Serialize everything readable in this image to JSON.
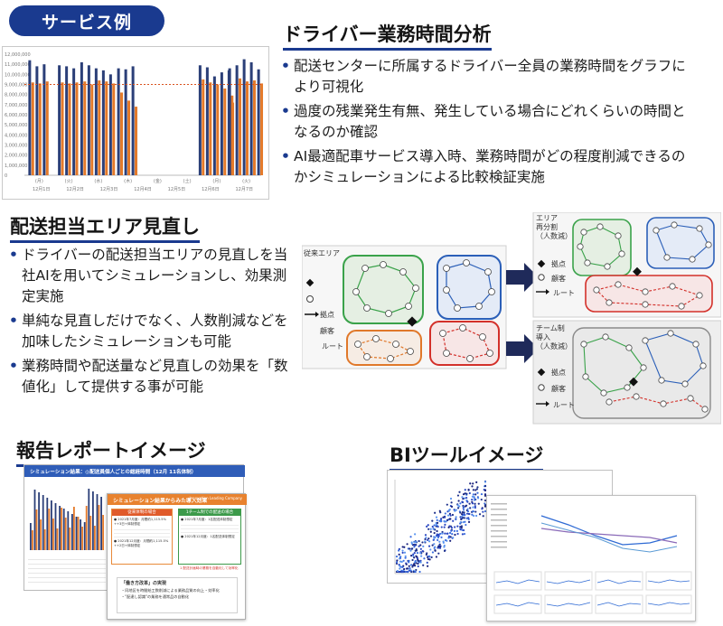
{
  "badge": "サービス例",
  "driver_analysis": {
    "title": "ドライバー業務時間分析",
    "bullets": [
      "配送センターに所属するドライバー全員の業務時間をグラフにより可視化",
      "過度の残業発生有無、発生している場合にどれくらいの時間となるのか確認",
      "AI最適配車サービス導入時、業務時間がどの程度削減できるのかシミュレーションによる比較検証実施"
    ],
    "chart": {
      "day_labels": [
        "(月)",
        "(火)",
        "(水)",
        "(木)",
        "(金)",
        "(土)",
        "(月)",
        "(火)"
      ],
      "date_labels": [
        "12月1日",
        "12月2日",
        "12月3日",
        "12月4日",
        "12月5日",
        "12月6日",
        "12月7日"
      ],
      "y_ticks": [
        "12,000,000",
        "11,000,000",
        "10,000,000",
        "9,000,000",
        "8,000,000",
        "7,000,000",
        "6,000,000",
        "5,000,000",
        "4,000,000",
        "3,000,000",
        "2,000,000",
        "1,000,000",
        "0"
      ]
    }
  },
  "chart_data": {
    "type": "bar",
    "series": [
      {
        "values": [
          11.4,
          10.8,
          11.0,
          10.9,
          10.8,
          10.6,
          11.2,
          10.9,
          10.6,
          10.4,
          10.0,
          10.6,
          10.5,
          10.8,
          10.9,
          10.7,
          9.8,
          10.2,
          10.4,
          10.6,
          10.9,
          11.5,
          11.2,
          10.5
        ]
      },
      {
        "values": [
          9.2,
          9.1,
          9.3,
          9.2,
          9.1,
          9.2,
          9.3,
          9.0,
          9.4,
          9.3,
          9.1,
          8.2,
          7.4,
          6.8,
          9.5,
          9.2,
          9.0,
          8.6,
          7.9,
          7.2,
          9.6,
          9.3,
          9.4,
          9.1
        ]
      }
    ],
    "day_groups": [
      3,
      3,
      5,
      3,
      0,
      0,
      5,
      5
    ],
    "reference_value": 9.0,
    "ylim": [
      0,
      12
    ],
    "colors": {
      "bar_blue": "#2b3f78",
      "bar_orange": "#e47a2a",
      "reference_line": "#d9531e"
    }
  },
  "area_review": {
    "title": "配送担当エリア見直し",
    "bullets": [
      "ドライバーの配送担当エリアの見直しを当社AIを用いてシミュレーションし、効果測定実施",
      "単純な見直しだけでなく、人数削減などを加味したシミュレーションも可能",
      "業務時間や配送量など見直しの効果を「数値化」して提供する事が可能"
    ],
    "diagram": {
      "current_label": "従来エリア",
      "split_label_lines": [
        "エリア",
        "再分割",
        "（人数減）"
      ],
      "team_label_lines": [
        "チーム制",
        "導入",
        "（人数減）"
      ],
      "legend_base": "拠点",
      "legend_customer": "顧客",
      "legend_route": "ルート"
    }
  },
  "report": {
    "title": "報告レポートイメージ",
    "back_title": "シミュレーション結果：◎配送員個人ごとの総経時間（12月 11名体制）",
    "front_title": "シミュレーション結果からみた導入効果",
    "front_tag": "Innovation Leading Company",
    "left_head": "従来体制の場合",
    "right_head": "1チーム制での配送の場合",
    "left_line1": "● 2021年7月度：月間約1,115.5% ++3日+体制想定",
    "left_line2": "● 2021年12月度：月間約1,115.5% ++2日+体制想定",
    "right_line1": "● 2021年7月度：1名配送体制想定",
    "right_line2": "● 2021年12月度：1名配送体制想定",
    "red_note": "1 配送計画時の業務を自動化して効率化",
    "reform_title": "「働き方改革」の実現",
    "reform_line1": "・同地区を時間給工数削減による業務品質の向上・効率化",
    "reform_line2": "・\"配達し認識\"の業務を通常品の自動化"
  },
  "bi": {
    "title": "BIツールイメージ"
  }
}
